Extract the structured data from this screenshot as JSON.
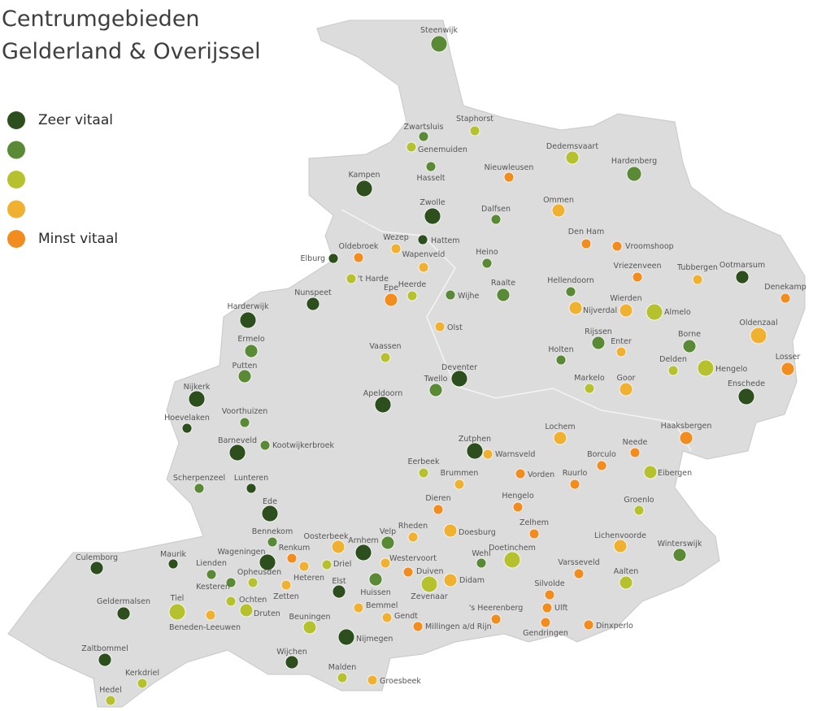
{
  "title_lines": [
    "Centrumgebieden",
    "Gelderland & Overijssel"
  ],
  "legend": [
    {
      "label": "Zeer vitaal",
      "color": "#2d4f1e"
    },
    {
      "color": "#5a8a35"
    },
    {
      "color": "#b5c22d"
    },
    {
      "color": "#f0b030"
    },
    {
      "label": "Minst vitaal",
      "color": "#f28c1e"
    }
  ],
  "places": [
    {
      "name": "Steenwijk",
      "color": "#5a8a35"
    },
    {
      "name": "Staphorst",
      "color": "#b5c22d"
    },
    {
      "name": "Zwartsluis",
      "color": "#5a8a35"
    },
    {
      "name": "Genemuiden",
      "color": "#b5c22d"
    },
    {
      "name": "Hasselt",
      "color": "#5a8a35"
    },
    {
      "name": "Kampen",
      "color": "#2d4f1e"
    },
    {
      "name": "Zwolle",
      "color": "#2d4f1e"
    },
    {
      "name": "Dedemsvaart",
      "color": "#b5c22d"
    },
    {
      "name": "Hardenberg",
      "color": "#5a8a35"
    },
    {
      "name": "Nieuwleusen",
      "color": "#f28c1e"
    },
    {
      "name": "Dalfsen",
      "color": "#5a8a35"
    },
    {
      "name": "Ommen",
      "color": "#f0b030"
    },
    {
      "name": "Den Ham",
      "color": "#f28c1e"
    },
    {
      "name": "Vroomshoop",
      "color": "#f28c1e"
    },
    {
      "name": "Wezep",
      "color": "#f0b030"
    },
    {
      "name": "Hattem",
      "color": "#2d4f1e"
    },
    {
      "name": "Oldebroek",
      "color": "#f28c1e"
    },
    {
      "name": "Elburg",
      "color": "#2d4f1e"
    },
    {
      "name": "Wapenveld",
      "color": "#f0b030"
    },
    {
      "name": "Heino",
      "color": "#5a8a35"
    },
    {
      "name": "'t Harde",
      "color": "#b5c22d"
    },
    {
      "name": "Heerde",
      "color": "#b5c22d"
    },
    {
      "name": "Wijhe",
      "color": "#5a8a35"
    },
    {
      "name": "Raalte",
      "color": "#5a8a35"
    },
    {
      "name": "Hellendoorn",
      "color": "#5a8a35"
    },
    {
      "name": "Vriezenveen",
      "color": "#f28c1e"
    },
    {
      "name": "Tubbergen",
      "color": "#f0b030"
    },
    {
      "name": "Ootmarsum",
      "color": "#2d4f1e"
    },
    {
      "name": "Denekamp",
      "color": "#f28c1e"
    },
    {
      "name": "Nunspeet",
      "color": "#2d4f1e"
    },
    {
      "name": "Harderwijk",
      "color": "#2d4f1e"
    },
    {
      "name": "Epe",
      "color": "#f28c1e"
    },
    {
      "name": "Olst",
      "color": "#f0b030"
    },
    {
      "name": "Nijverdal",
      "color": "#f0b030"
    },
    {
      "name": "Wierden",
      "color": "#f0b030"
    },
    {
      "name": "Almelo",
      "color": "#b5c22d"
    },
    {
      "name": "Oldenzaal",
      "color": "#f0b030"
    },
    {
      "name": "Ermelo",
      "color": "#5a8a35"
    },
    {
      "name": "Vaassen",
      "color": "#b5c22d"
    },
    {
      "name": "Rijssen",
      "color": "#5a8a35"
    },
    {
      "name": "Enter",
      "color": "#f0b030"
    },
    {
      "name": "Borne",
      "color": "#5a8a35"
    },
    {
      "name": "Holten",
      "color": "#5a8a35"
    },
    {
      "name": "Delden",
      "color": "#b5c22d"
    },
    {
      "name": "Hengelo",
      "color": "#b5c22d"
    },
    {
      "name": "Losser",
      "color": "#f28c1e"
    },
    {
      "name": "Putten",
      "color": "#5a8a35"
    },
    {
      "name": "Deventer",
      "color": "#2d4f1e"
    },
    {
      "name": "Twello",
      "color": "#5a8a35"
    },
    {
      "name": "Markelo",
      "color": "#b5c22d"
    },
    {
      "name": "Goor",
      "color": "#f0b030"
    },
    {
      "name": "Enschede",
      "color": "#2d4f1e"
    },
    {
      "name": "Nijkerk",
      "color": "#2d4f1e"
    },
    {
      "name": "Apeldoorn",
      "color": "#2d4f1e"
    },
    {
      "name": "Hoevelaken",
      "color": "#2d4f1e"
    },
    {
      "name": "Voorthuizen",
      "color": "#5a8a35"
    },
    {
      "name": "Lochem",
      "color": "#f0b030"
    },
    {
      "name": "Haaksbergen",
      "color": "#f28c1e"
    },
    {
      "name": "Barneveld",
      "color": "#2d4f1e"
    },
    {
      "name": "Kootwijkerbroek",
      "color": "#5a8a35"
    },
    {
      "name": "Zutphen",
      "color": "#2d4f1e"
    },
    {
      "name": "Warnsveld",
      "color": "#f0b030"
    },
    {
      "name": "Neede",
      "color": "#f28c1e"
    },
    {
      "name": "Borculo",
      "color": "#f28c1e"
    },
    {
      "name": "Eerbeek",
      "color": "#b5c22d"
    },
    {
      "name": "Vorden",
      "color": "#f28c1e"
    },
    {
      "name": "Eibergen",
      "color": "#b5c22d"
    },
    {
      "name": "Scherpenzeel",
      "color": "#5a8a35"
    },
    {
      "name": "Lunteren",
      "color": "#2d4f1e"
    },
    {
      "name": "Brummen",
      "color": "#f0b030"
    },
    {
      "name": "Ruurlo",
      "color": "#f28c1e"
    },
    {
      "name": "Hengelo",
      "color": "#f28c1e"
    },
    {
      "name": "Dieren",
      "color": "#f28c1e"
    },
    {
      "name": "Groenlo",
      "color": "#b5c22d"
    },
    {
      "name": "Ede",
      "color": "#2d4f1e"
    },
    {
      "name": "Zelhem",
      "color": "#f28c1e"
    },
    {
      "name": "Doesburg",
      "color": "#f0b030"
    },
    {
      "name": "Bennekom",
      "color": "#5a8a35"
    },
    {
      "name": "Rheden",
      "color": "#f0b030"
    },
    {
      "name": "Oosterbeek",
      "color": "#f0b030"
    },
    {
      "name": "Arnhem",
      "color": "#2d4f1e"
    },
    {
      "name": "Velp",
      "color": "#5a8a35"
    },
    {
      "name": "Lichenvoorde",
      "color": "#f0b030"
    },
    {
      "name": "Winterswijk",
      "color": "#5a8a35"
    },
    {
      "name": "Renkum",
      "color": "#f28c1e"
    },
    {
      "name": "Maurik",
      "color": "#2d4f1e"
    },
    {
      "name": "Culemborg",
      "color": "#2d4f1e"
    },
    {
      "name": "Wageningen",
      "color": "#2d4f1e"
    },
    {
      "name": "Lienden",
      "color": "#5a8a35"
    },
    {
      "name": "Driel",
      "color": "#b5c22d"
    },
    {
      "name": "Heteren",
      "color": "#f0b030"
    },
    {
      "name": "Westervoort",
      "color": "#f0b030"
    },
    {
      "name": "Wehl",
      "color": "#5a8a35"
    },
    {
      "name": "Doetinchem",
      "color": "#b5c22d"
    },
    {
      "name": "Duiven",
      "color": "#f28c1e"
    },
    {
      "name": "Varsseveld",
      "color": "#f28c1e"
    },
    {
      "name": "Opheusden",
      "color": "#b5c22d"
    },
    {
      "name": "Kesteren",
      "color": "#5a8a35"
    },
    {
      "name": "Huissen",
      "color": "#5a8a35"
    },
    {
      "name": "Zevenaar",
      "color": "#b5c22d"
    },
    {
      "name": "Didam",
      "color": "#f0b030"
    },
    {
      "name": "Aalten",
      "color": "#b5c22d"
    },
    {
      "name": "Zetten",
      "color": "#f0b030"
    },
    {
      "name": "Elst",
      "color": "#2d4f1e"
    },
    {
      "name": "Silvolde",
      "color": "#f28c1e"
    },
    {
      "name": "Geldermalsen",
      "color": "#2d4f1e"
    },
    {
      "name": "Tiel",
      "color": "#b5c22d"
    },
    {
      "name": "Ochten",
      "color": "#b5c22d"
    },
    {
      "name": "Druten",
      "color": "#b5c22d"
    },
    {
      "name": "Bemmel",
      "color": "#f0b030"
    },
    {
      "name": "Ulft",
      "color": "#f28c1e"
    },
    {
      "name": "'s Heerenberg",
      "color": "#f28c1e"
    },
    {
      "name": "Beneden-Leeuwen",
      "color": "#f0b030"
    },
    {
      "name": "Gendt",
      "color": "#f0b030"
    },
    {
      "name": "Gendringen",
      "color": "#f28c1e"
    },
    {
      "name": "Dinxperlo",
      "color": "#f28c1e"
    },
    {
      "name": "Beuningen",
      "color": "#b5c22d"
    },
    {
      "name": "Millingen a/d Rijn",
      "color": "#f28c1e"
    },
    {
      "name": "Nijmegen",
      "color": "#2d4f1e"
    },
    {
      "name": "Zaltbommel",
      "color": "#2d4f1e"
    },
    {
      "name": "Wijchen",
      "color": "#2d4f1e"
    },
    {
      "name": "Malden",
      "color": "#b5c22d"
    },
    {
      "name": "Kerkdriel",
      "color": "#b5c22d"
    },
    {
      "name": "Groesbeek",
      "color": "#f0b030"
    },
    {
      "name": "Hedel",
      "color": "#b5c22d"
    }
  ]
}
